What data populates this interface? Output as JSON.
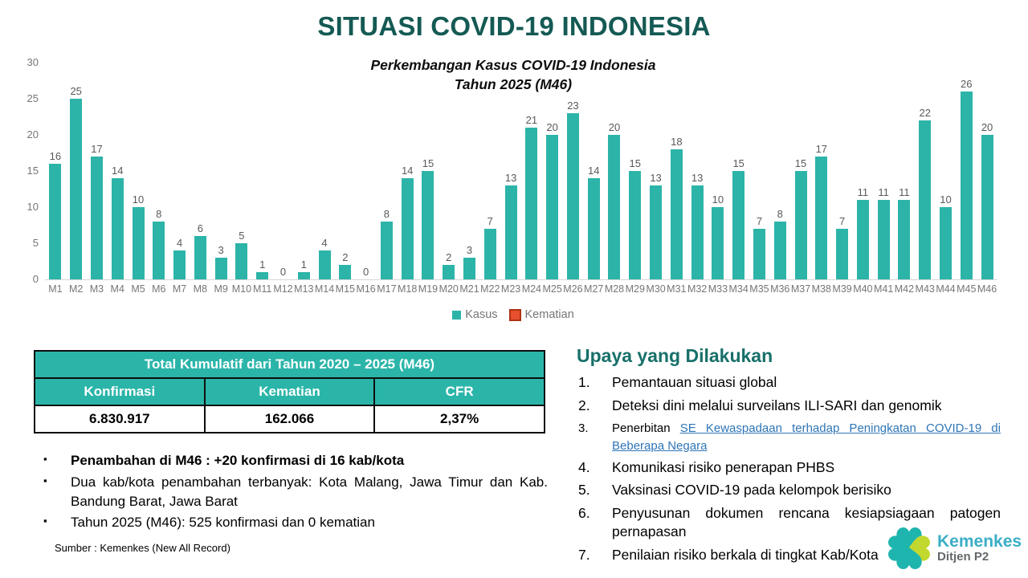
{
  "slide": {
    "title": "SITUASI COVID-19 INDONESIA"
  },
  "chart_data": {
    "type": "bar",
    "title_lines": [
      "Perkembangan Kasus COVID-19 Indonesia",
      "Tahun 2025 (M46)"
    ],
    "categories": [
      "M1",
      "M2",
      "M3",
      "M4",
      "M5",
      "M6",
      "M7",
      "M8",
      "M9",
      "M10",
      "M11",
      "M12",
      "M13",
      "M14",
      "M15",
      "M16",
      "M17",
      "M18",
      "M19",
      "M20",
      "M21",
      "M22",
      "M23",
      "M24",
      "M25",
      "M26",
      "M27",
      "M28",
      "M29",
      "M30",
      "M31",
      "M32",
      "M33",
      "M34",
      "M35",
      "M36",
      "M37",
      "M38",
      "M39",
      "M40",
      "M41",
      "M42",
      "M43",
      "M44",
      "M45",
      "M46"
    ],
    "series": [
      {
        "name": "Kasus",
        "color": "#2CB4A8",
        "values": [
          16,
          25,
          17,
          14,
          10,
          8,
          4,
          6,
          3,
          5,
          1,
          0,
          1,
          4,
          2,
          0,
          8,
          14,
          15,
          2,
          3,
          7,
          13,
          21,
          20,
          23,
          14,
          20,
          15,
          13,
          18,
          13,
          10,
          15,
          7,
          8,
          15,
          17,
          7,
          11,
          11,
          11,
          22,
          10,
          26,
          20
        ]
      },
      {
        "name": "Kematian",
        "color": "#E8502E",
        "border": "#AE3113",
        "values": [
          0,
          0,
          0,
          0,
          0,
          0,
          0,
          0,
          0,
          0,
          0,
          0,
          0,
          0,
          0,
          0,
          0,
          0,
          0,
          0,
          0,
          0,
          0,
          0,
          0,
          0,
          0,
          0,
          0,
          0,
          0,
          0,
          0,
          0,
          0,
          0,
          0,
          0,
          0,
          0,
          0,
          0,
          0,
          0,
          0,
          0
        ]
      }
    ],
    "ylim": [
      0,
      30
    ],
    "yticks": [
      0,
      5,
      10,
      15,
      20,
      25,
      30
    ],
    "grid": false,
    "legend_position": "bottom",
    "xlabel": "",
    "ylabel": ""
  },
  "table": {
    "title": "Total Kumulatif dari Tahun 2020 – 2025 (M46)",
    "columns": [
      "Konfirmasi",
      "Kematian",
      "CFR"
    ],
    "values": [
      "6.830.917",
      "162.066",
      "2,37%"
    ]
  },
  "highlights": [
    {
      "text": "Penambahan di M46 : +20 konfirmasi di 16 kab/kota"
    },
    {
      "text": "Dua kab/kota penambahan terbanyak: Kota Malang, Jawa Timur dan Kab. Bandung Barat, Jawa Barat"
    },
    {
      "text": "Tahun 2025 (M46): 525 konfirmasi dan 0 kematian"
    }
  ],
  "source": "Sumber : Kemenkes (New All Record)",
  "efforts": {
    "heading": "Upaya yang Dilakukan",
    "items": [
      {
        "num": "1.",
        "text": "Pemantauan situasi global"
      },
      {
        "num": "2.",
        "text": "Deteksi dini melalui surveilans ILI-SARI dan genomik"
      },
      {
        "num": "3.",
        "prefix": "Penerbitan ",
        "link": "SE Kewaspadaan terhadap Peningkatan COVID-19 di Beberapa Negara"
      },
      {
        "num": "4.",
        "text": "Komunikasi risiko penerapan PHBS"
      },
      {
        "num": "5.",
        "text": "Vaksinasi COVID-19 pada kelompok berisiko"
      },
      {
        "num": "6.",
        "text": "Penyusunan dokumen rencana kesiapsiagaan patogen pernapasan"
      },
      {
        "num": "7.",
        "text": "Penilaian risiko berkala di tingkat Kab/Kota"
      }
    ]
  },
  "logo": {
    "icon": "kemenkes-clover-icon",
    "title": "Kemenkes",
    "subtitle": "Ditjen P2",
    "colors": {
      "teal": "#1FB5AF",
      "lime": "#C3D82E",
      "title": "#3BAEC6",
      "subtitle": "#65686A"
    }
  }
}
